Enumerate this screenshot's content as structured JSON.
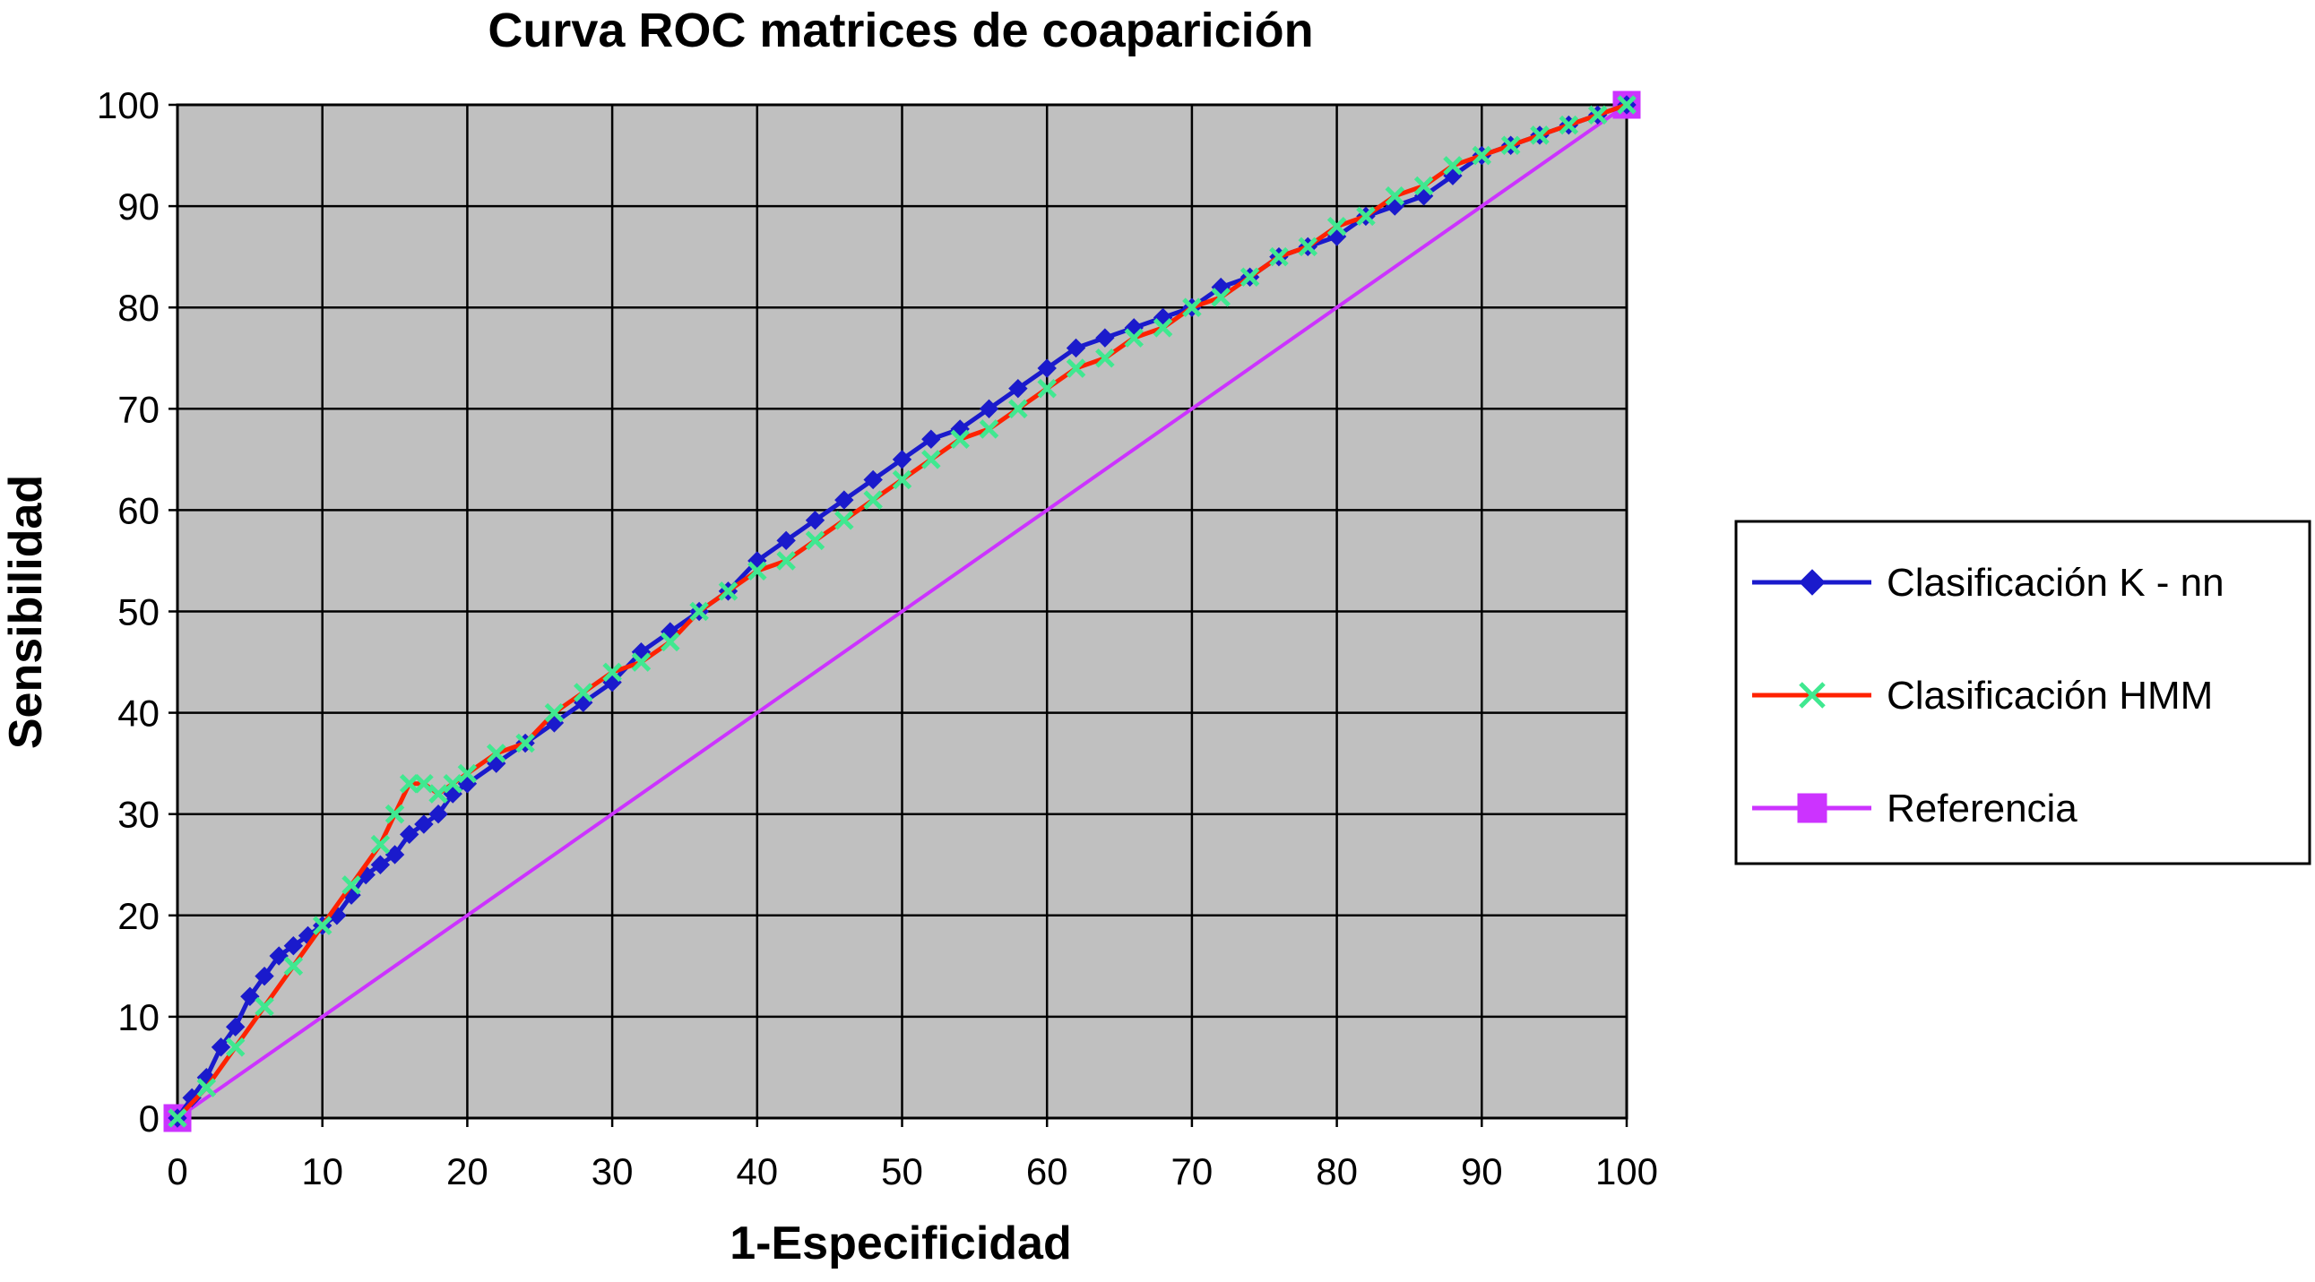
{
  "chart_data": {
    "type": "line",
    "title": "Curva ROC matrices de coaparición",
    "xlabel": "1-Especificidad",
    "ylabel": "Sensibilidad",
    "xlim": [
      0,
      100
    ],
    "ylim": [
      0,
      100
    ],
    "xticks": [
      "0",
      "10",
      "20",
      "30",
      "40",
      "50",
      "60",
      "70",
      "80",
      "90",
      "100"
    ],
    "yticks": [
      "0",
      "10",
      "20",
      "30",
      "40",
      "50",
      "60",
      "70",
      "80",
      "90",
      "100"
    ],
    "grid": true,
    "plot_background": "#c0c0c0",
    "legend_position": "right",
    "series": [
      {
        "name": "Clasificación K - nn",
        "color": "#1a1acc",
        "marker": "diamond",
        "x": [
          0,
          1,
          2,
          3,
          4,
          5,
          6,
          7,
          8,
          9,
          10,
          11,
          12,
          13,
          14,
          15,
          16,
          17,
          18,
          19,
          20,
          22,
          24,
          26,
          28,
          30,
          32,
          34,
          36,
          38,
          40,
          42,
          44,
          46,
          48,
          50,
          52,
          54,
          56,
          58,
          60,
          62,
          64,
          66,
          68,
          70,
          72,
          74,
          76,
          78,
          80,
          82,
          84,
          86,
          88,
          90,
          92,
          94,
          96,
          98,
          100
        ],
        "y": [
          0,
          2,
          4,
          7,
          9,
          12,
          14,
          16,
          17,
          18,
          19,
          20,
          22,
          24,
          25,
          26,
          28,
          29,
          30,
          32,
          33,
          35,
          37,
          39,
          41,
          43,
          46,
          48,
          50,
          52,
          55,
          57,
          59,
          61,
          63,
          65,
          67,
          68,
          70,
          72,
          74,
          76,
          77,
          78,
          79,
          80,
          82,
          83,
          85,
          86,
          87,
          89,
          90,
          91,
          93,
          95,
          96,
          97,
          98,
          99,
          100
        ]
      },
      {
        "name": "Clasificación HMM",
        "color": "#ff2200",
        "marker_color": "#40e890",
        "marker": "x",
        "x": [
          0,
          2,
          4,
          6,
          8,
          10,
          12,
          14,
          15,
          16,
          17,
          18,
          19,
          20,
          22,
          24,
          26,
          28,
          30,
          32,
          34,
          36,
          38,
          40,
          42,
          44,
          46,
          48,
          50,
          52,
          54,
          56,
          58,
          60,
          62,
          64,
          66,
          68,
          70,
          72,
          74,
          76,
          78,
          80,
          82,
          84,
          86,
          88,
          90,
          92,
          94,
          96,
          98,
          100
        ],
        "y": [
          0,
          3,
          7,
          11,
          15,
          19,
          23,
          27,
          30,
          33,
          33,
          32,
          33,
          34,
          36,
          37,
          40,
          42,
          44,
          45,
          47,
          50,
          52,
          54,
          55,
          57,
          59,
          61,
          63,
          65,
          67,
          68,
          70,
          72,
          74,
          75,
          77,
          78,
          80,
          81,
          83,
          85,
          86,
          88,
          89,
          91,
          92,
          94,
          95,
          96,
          97,
          98,
          99,
          100
        ]
      },
      {
        "name": "Referencia",
        "color": "#cc33ff",
        "marker": "square",
        "x": [
          0,
          100
        ],
        "y": [
          0,
          100
        ]
      }
    ]
  }
}
